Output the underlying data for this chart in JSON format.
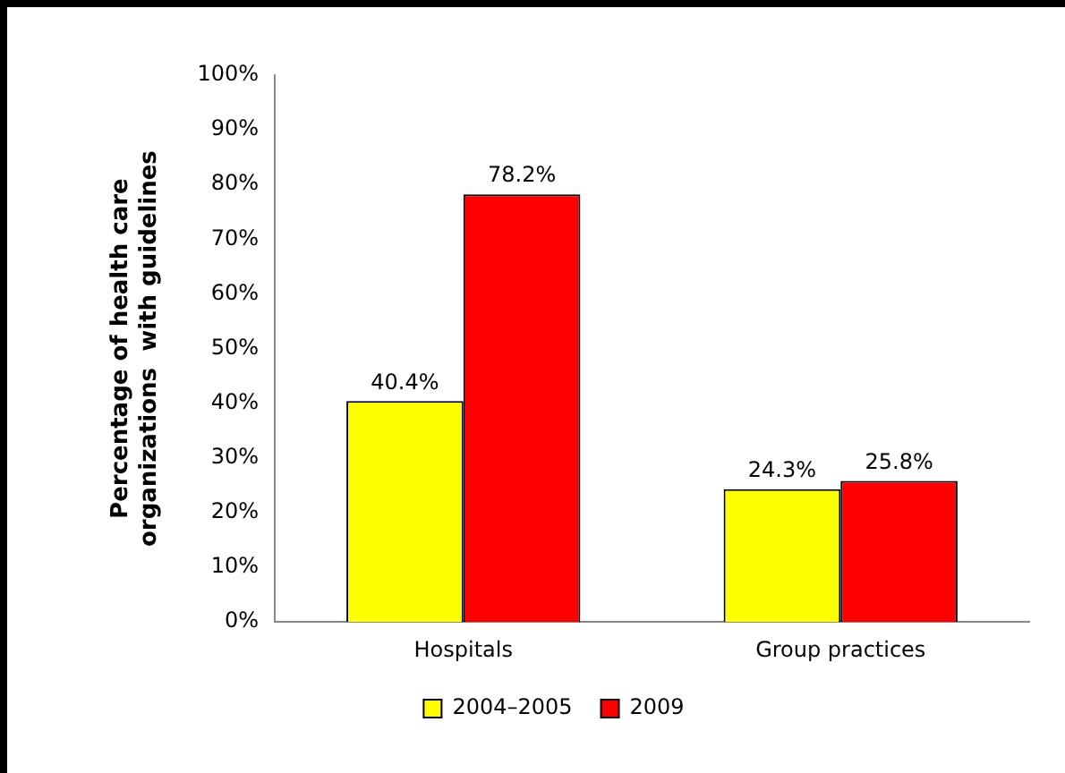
{
  "chart_data": {
    "type": "bar",
    "ylabel": "Percentage of health care\norganizations  with guidelines",
    "categories": [
      "Hospitals",
      "Group practices"
    ],
    "series": [
      {
        "name": "2004–2005",
        "color": "#ffff00",
        "values": [
          40.4,
          24.3
        ],
        "value_labels": [
          "40.4%",
          "24.3%"
        ]
      },
      {
        "name": "2009",
        "color": "#ff0000",
        "values": [
          78.2,
          25.8
        ],
        "value_labels": [
          "78.2%",
          "25.8%"
        ]
      }
    ],
    "ylim": [
      0,
      100
    ],
    "yticks": [
      {
        "value": 0,
        "label": "0%"
      },
      {
        "value": 10,
        "label": "10%"
      },
      {
        "value": 20,
        "label": "20%"
      },
      {
        "value": 30,
        "label": "30%"
      },
      {
        "value": 40,
        "label": "40%"
      },
      {
        "value": 50,
        "label": "50%"
      },
      {
        "value": 60,
        "label": "60%"
      },
      {
        "value": 70,
        "label": "70%"
      },
      {
        "value": 80,
        "label": "80%"
      },
      {
        "value": 90,
        "label": "90%"
      },
      {
        "value": 100,
        "label": "100%"
      }
    ],
    "grid": false,
    "legend": "bottom"
  }
}
